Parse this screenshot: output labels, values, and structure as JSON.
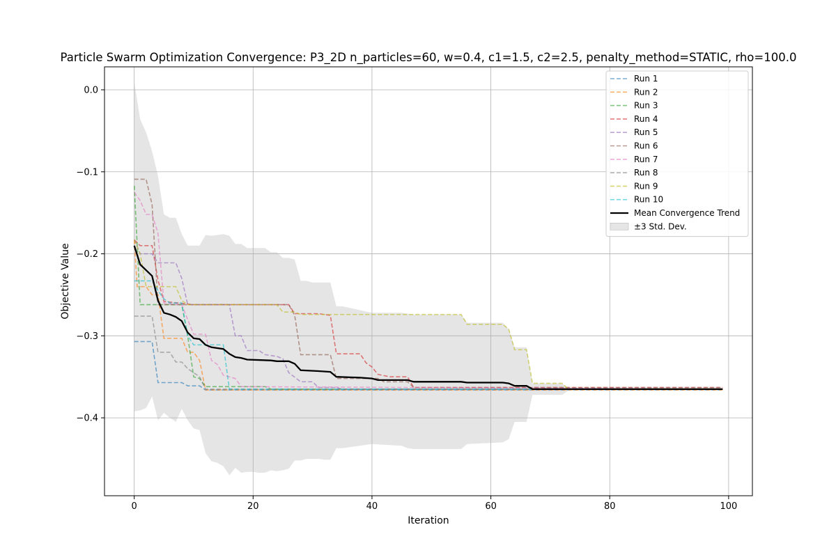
{
  "chart_data": {
    "type": "line",
    "title": "Particle Swarm Optimization Convergence: P3_2D n_particles=60, w=0.4, c1=1.5, c2=2.5, penalty_method=STATIC, rho=100.0",
    "xlabel": "Iteration",
    "ylabel": "Objective Value",
    "xlim": [
      -5,
      104
    ],
    "ylim": [
      -0.495,
      0.028
    ],
    "xticks": [
      0,
      20,
      40,
      60,
      80,
      100
    ],
    "yticks": [
      0.0,
      -0.1,
      -0.2,
      -0.3,
      -0.4
    ],
    "xtick_labels": [
      "0",
      "20",
      "40",
      "60",
      "80",
      "100"
    ],
    "ytick_labels": [
      "0.0",
      "−0.1",
      "−0.2",
      "−0.3",
      "−0.4"
    ],
    "grid": true,
    "legend_position": "top-right",
    "series": [
      {
        "name": "Run 1",
        "color": "#1f77b4",
        "style": "dashed",
        "points": [
          [
            0,
            -0.307
          ],
          [
            3,
            -0.307
          ],
          [
            4,
            -0.357
          ],
          [
            8,
            -0.357
          ],
          [
            9,
            -0.361
          ],
          [
            11,
            -0.361
          ],
          [
            12,
            -0.366
          ],
          [
            99,
            -0.366
          ]
        ]
      },
      {
        "name": "Run 2",
        "color": "#ff7f0e",
        "style": "dashed",
        "points": [
          [
            0,
            -0.183
          ],
          [
            0.5,
            -0.24
          ],
          [
            2,
            -0.24
          ],
          [
            3,
            -0.25
          ],
          [
            4,
            -0.25
          ],
          [
            5,
            -0.303
          ],
          [
            8,
            -0.303
          ],
          [
            9,
            -0.32
          ],
          [
            10,
            -0.32
          ],
          [
            11,
            -0.33
          ],
          [
            12,
            -0.366
          ],
          [
            99,
            -0.366
          ]
        ]
      },
      {
        "name": "Run 3",
        "color": "#2ca02c",
        "style": "dashed",
        "points": [
          [
            0,
            -0.117
          ],
          [
            1,
            -0.262
          ],
          [
            8,
            -0.262
          ],
          [
            9,
            -0.3
          ],
          [
            10,
            -0.35
          ],
          [
            11,
            -0.352
          ],
          [
            12,
            -0.362
          ],
          [
            22,
            -0.362
          ],
          [
            23,
            -0.365
          ],
          [
            99,
            -0.365
          ]
        ]
      },
      {
        "name": "Run 4",
        "color": "#d62728",
        "style": "dashed",
        "points": [
          [
            0,
            -0.183
          ],
          [
            1,
            -0.19
          ],
          [
            3,
            -0.19
          ],
          [
            4,
            -0.232
          ],
          [
            5,
            -0.258
          ],
          [
            10,
            -0.262
          ],
          [
            26,
            -0.262
          ],
          [
            27,
            -0.273
          ],
          [
            31,
            -0.273
          ],
          [
            33,
            -0.275
          ],
          [
            34,
            -0.322
          ],
          [
            38,
            -0.322
          ],
          [
            39,
            -0.333
          ],
          [
            40,
            -0.338
          ],
          [
            41,
            -0.347
          ],
          [
            43,
            -0.35
          ],
          [
            46,
            -0.35
          ],
          [
            47,
            -0.363
          ],
          [
            99,
            -0.363
          ]
        ]
      },
      {
        "name": "Run 5",
        "color": "#9467bd",
        "style": "dashed",
        "points": [
          [
            0,
            -0.183
          ],
          [
            1,
            -0.2
          ],
          [
            3,
            -0.2
          ],
          [
            4,
            -0.211
          ],
          [
            7,
            -0.211
          ],
          [
            8,
            -0.23
          ],
          [
            9,
            -0.262
          ],
          [
            16,
            -0.262
          ],
          [
            17,
            -0.3
          ],
          [
            18,
            -0.3
          ],
          [
            19,
            -0.318
          ],
          [
            21,
            -0.318
          ],
          [
            22,
            -0.323
          ],
          [
            24,
            -0.325
          ],
          [
            25,
            -0.328
          ],
          [
            26,
            -0.345
          ],
          [
            28,
            -0.356
          ],
          [
            30,
            -0.356
          ],
          [
            31,
            -0.363
          ],
          [
            34,
            -0.363
          ],
          [
            35,
            -0.365
          ],
          [
            99,
            -0.365
          ]
        ]
      },
      {
        "name": "Run 6",
        "color": "#8c564b",
        "style": "dashed",
        "points": [
          [
            0,
            -0.109
          ],
          [
            2,
            -0.109
          ],
          [
            3,
            -0.14
          ],
          [
            4,
            -0.262
          ],
          [
            26,
            -0.262
          ],
          [
            27,
            -0.275
          ],
          [
            28,
            -0.323
          ],
          [
            33,
            -0.323
          ],
          [
            34,
            -0.352
          ],
          [
            41,
            -0.352
          ],
          [
            42,
            -0.356
          ],
          [
            46,
            -0.356
          ],
          [
            47,
            -0.363
          ],
          [
            99,
            -0.363
          ]
        ]
      },
      {
        "name": "Run 7",
        "color": "#e377c2",
        "style": "dashed",
        "points": [
          [
            0,
            -0.125
          ],
          [
            1,
            -0.135
          ],
          [
            2,
            -0.152
          ],
          [
            3,
            -0.152
          ],
          [
            4,
            -0.175
          ],
          [
            5,
            -0.26
          ],
          [
            8,
            -0.262
          ],
          [
            9,
            -0.28
          ],
          [
            10,
            -0.298
          ],
          [
            12,
            -0.298
          ],
          [
            13,
            -0.33
          ],
          [
            14,
            -0.335
          ],
          [
            15,
            -0.348
          ],
          [
            17,
            -0.352
          ],
          [
            18,
            -0.362
          ],
          [
            99,
            -0.365
          ]
        ]
      },
      {
        "name": "Run 8",
        "color": "#7f7f7f",
        "style": "dashed",
        "points": [
          [
            0,
            -0.276
          ],
          [
            3,
            -0.276
          ],
          [
            4,
            -0.32
          ],
          [
            6,
            -0.32
          ],
          [
            7,
            -0.332
          ],
          [
            8,
            -0.332
          ],
          [
            9,
            -0.34
          ],
          [
            11,
            -0.35
          ],
          [
            12,
            -0.365
          ],
          [
            99,
            -0.365
          ]
        ]
      },
      {
        "name": "Run 9",
        "color": "#bcbd22",
        "style": "dashed",
        "points": [
          [
            0,
            -0.183
          ],
          [
            1,
            -0.2
          ],
          [
            2,
            -0.24
          ],
          [
            7,
            -0.24
          ],
          [
            8,
            -0.257
          ],
          [
            9,
            -0.262
          ],
          [
            24,
            -0.262
          ],
          [
            25,
            -0.271
          ],
          [
            27,
            -0.271
          ],
          [
            28,
            -0.274
          ],
          [
            55,
            -0.274
          ],
          [
            56,
            -0.286
          ],
          [
            62,
            -0.286
          ],
          [
            63,
            -0.292
          ],
          [
            64,
            -0.317
          ],
          [
            66,
            -0.317
          ],
          [
            67,
            -0.358
          ],
          [
            72,
            -0.358
          ],
          [
            73,
            -0.365
          ],
          [
            99,
            -0.365
          ]
        ]
      },
      {
        "name": "Run 10",
        "color": "#17becf",
        "style": "dashed",
        "points": [
          [
            0,
            -0.233
          ],
          [
            3,
            -0.233
          ],
          [
            4,
            -0.245
          ],
          [
            5,
            -0.255
          ],
          [
            6,
            -0.26
          ],
          [
            8,
            -0.26
          ],
          [
            9,
            -0.3
          ],
          [
            10,
            -0.311
          ],
          [
            15,
            -0.311
          ],
          [
            16,
            -0.365
          ],
          [
            99,
            -0.365
          ]
        ]
      },
      {
        "name": "Mean Convergence Trend",
        "color": "#000000",
        "style": "solid",
        "points": [
          [
            0,
            -0.19
          ],
          [
            1,
            -0.213
          ],
          [
            2,
            -0.22
          ],
          [
            3,
            -0.227
          ],
          [
            4,
            -0.257
          ],
          [
            5,
            -0.272
          ],
          [
            6,
            -0.274
          ],
          [
            7,
            -0.277
          ],
          [
            8,
            -0.282
          ],
          [
            9,
            -0.296
          ],
          [
            10,
            -0.303
          ],
          [
            11,
            -0.304
          ],
          [
            12,
            -0.311
          ],
          [
            13,
            -0.314
          ],
          [
            14,
            -0.315
          ],
          [
            15,
            -0.316
          ],
          [
            16,
            -0.322
          ],
          [
            17,
            -0.326
          ],
          [
            18,
            -0.327
          ],
          [
            19,
            -0.329
          ],
          [
            23,
            -0.33
          ],
          [
            24,
            -0.331
          ],
          [
            26,
            -0.331
          ],
          [
            27,
            -0.334
          ],
          [
            28,
            -0.342
          ],
          [
            31,
            -0.343
          ],
          [
            33,
            -0.344
          ],
          [
            34,
            -0.35
          ],
          [
            38,
            -0.351
          ],
          [
            40,
            -0.352
          ],
          [
            41,
            -0.354
          ],
          [
            46,
            -0.354
          ],
          [
            47,
            -0.356
          ],
          [
            55,
            -0.356
          ],
          [
            56,
            -0.357
          ],
          [
            62,
            -0.357
          ],
          [
            63,
            -0.358
          ],
          [
            64,
            -0.361
          ],
          [
            66,
            -0.361
          ],
          [
            67,
            -0.365
          ],
          [
            99,
            -0.365
          ]
        ]
      }
    ],
    "band": {
      "name": "±3 Std. Dev.",
      "color": "#d3d3d3",
      "x": [
        0,
        1,
        2,
        3,
        4,
        5,
        6,
        7,
        8,
        9,
        10,
        11,
        12,
        13,
        14,
        15,
        16,
        17,
        18,
        19,
        20,
        21,
        22,
        23,
        24,
        25,
        26,
        27,
        28,
        29,
        30,
        31,
        32,
        33,
        34,
        35,
        40,
        45,
        46,
        47,
        55,
        56,
        62,
        63,
        64,
        65,
        66,
        67,
        72,
        73
      ],
      "upper": [
        0.01,
        -0.036,
        -0.052,
        -0.075,
        -0.105,
        -0.152,
        -0.156,
        -0.156,
        -0.176,
        -0.19,
        -0.19,
        -0.19,
        -0.177,
        -0.178,
        -0.177,
        -0.176,
        -0.178,
        -0.188,
        -0.188,
        -0.193,
        -0.193,
        -0.193,
        -0.193,
        -0.198,
        -0.198,
        -0.205,
        -0.205,
        -0.207,
        -0.233,
        -0.233,
        -0.235,
        -0.235,
        -0.235,
        -0.235,
        -0.264,
        -0.264,
        -0.272,
        -0.272,
        -0.273,
        -0.274,
        -0.274,
        -0.284,
        -0.284,
        -0.292,
        -0.314,
        -0.314,
        -0.314,
        -0.358,
        -0.358,
        -0.364
      ],
      "lower": [
        -0.392,
        -0.391,
        -0.388,
        -0.374,
        -0.403,
        -0.394,
        -0.4,
        -0.405,
        -0.389,
        -0.403,
        -0.413,
        -0.415,
        -0.443,
        -0.453,
        -0.455,
        -0.459,
        -0.47,
        -0.461,
        -0.467,
        -0.466,
        -0.466,
        -0.467,
        -0.467,
        -0.464,
        -0.465,
        -0.464,
        -0.462,
        -0.452,
        -0.452,
        -0.45,
        -0.45,
        -0.45,
        -0.451,
        -0.451,
        -0.437,
        -0.437,
        -0.432,
        -0.434,
        -0.437,
        -0.438,
        -0.438,
        -0.432,
        -0.43,
        -0.426,
        -0.405,
        -0.405,
        -0.405,
        -0.372,
        -0.372,
        -0.367
      ]
    }
  }
}
